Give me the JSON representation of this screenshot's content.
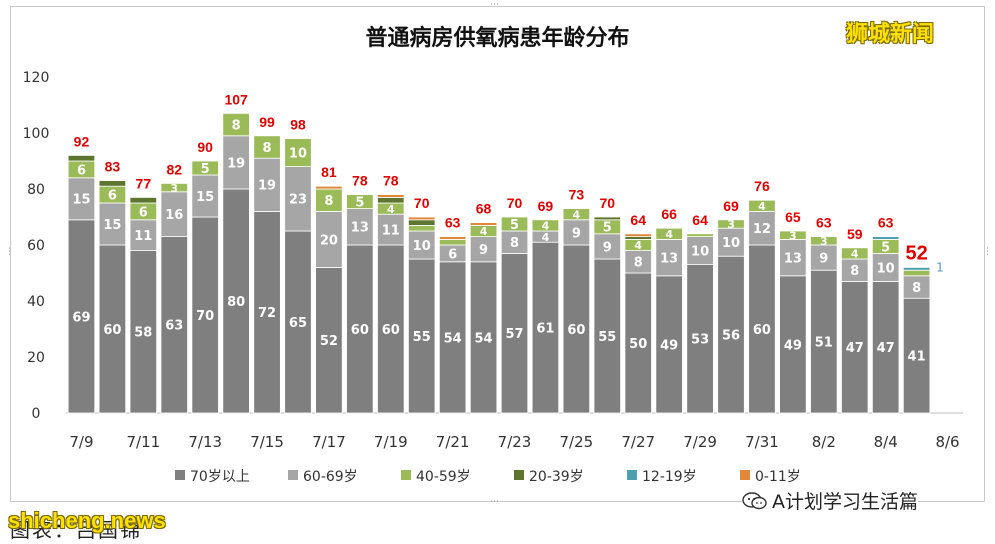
{
  "chart_data": {
    "type": "bar",
    "stacked": true,
    "title": "普通病房供氧病患年龄分布",
    "ylim": [
      0,
      120
    ],
    "yticks": [
      0,
      20,
      40,
      60,
      80,
      100,
      120
    ],
    "grid": false,
    "legend_placement": "bottom",
    "categories": [
      "7/9",
      "7/10",
      "7/11",
      "7/12",
      "7/13",
      "7/14",
      "7/15",
      "7/16",
      "7/17",
      "7/18",
      "7/19",
      "7/20",
      "7/21",
      "7/22",
      "7/23",
      "7/24",
      "7/25",
      "7/26",
      "7/27",
      "7/28",
      "7/29",
      "7/30",
      "7/31",
      "8/1",
      "8/2",
      "8/3",
      "8/4",
      "8/5",
      "8/6"
    ],
    "x_tick_labels": [
      "7/9",
      "7/11",
      "7/13",
      "7/15",
      "7/17",
      "7/19",
      "7/21",
      "7/23",
      "7/25",
      "7/27",
      "7/29",
      "7/31",
      "8/2",
      "8/4",
      "8/6"
    ],
    "totals": [
      92,
      83,
      77,
      82,
      90,
      107,
      99,
      98,
      81,
      78,
      78,
      70,
      63,
      68,
      70,
      69,
      73,
      70,
      64,
      66,
      64,
      69,
      76,
      65,
      63,
      59,
      63,
      52,
      null
    ],
    "series": [
      {
        "name": "70岁以上",
        "color": "#7f7f7f",
        "values": [
          69,
          60,
          58,
          63,
          70,
          80,
          72,
          65,
          52,
          60,
          60,
          55,
          54,
          54,
          57,
          61,
          60,
          55,
          50,
          49,
          53,
          56,
          60,
          49,
          51,
          47,
          47,
          41,
          0
        ]
      },
      {
        "name": "60-69岁",
        "color": "#a6a6a6",
        "values": [
          15,
          15,
          11,
          16,
          15,
          19,
          19,
          23,
          20,
          13,
          11,
          10,
          6,
          9,
          8,
          4,
          9,
          9,
          8,
          13,
          10,
          10,
          12,
          13,
          9,
          8,
          10,
          8,
          0
        ]
      },
      {
        "name": "40-59岁",
        "color": "#9bbb59",
        "values": [
          6,
          6,
          6,
          3,
          5,
          8,
          8,
          10,
          8,
          5,
          4,
          2,
          2,
          4,
          5,
          4,
          4,
          5,
          4,
          4,
          1,
          3,
          4,
          3,
          3,
          4,
          5,
          2,
          0
        ]
      },
      {
        "name": "20-39岁",
        "color": "#5e7530",
        "values": [
          2,
          2,
          2,
          0,
          0,
          0,
          0,
          0,
          0,
          0,
          2,
          2,
          0,
          0,
          0,
          0,
          0,
          1,
          1,
          0,
          0,
          0,
          0,
          0,
          0,
          0,
          0,
          0,
          0
        ]
      },
      {
        "name": "12-19岁",
        "color": "#4f9fb3",
        "values": [
          0,
          0,
          0,
          0,
          0,
          0,
          0,
          0,
          0,
          0,
          0,
          0,
          0,
          0,
          0,
          0,
          0,
          0,
          0,
          0,
          0,
          0,
          0,
          0,
          0,
          0,
          1,
          1,
          0
        ]
      },
      {
        "name": "0-11岁",
        "color": "#e1873a",
        "values": [
          0,
          0,
          0,
          0,
          0,
          0,
          0,
          0,
          1,
          0,
          1,
          1,
          1,
          1,
          0,
          0,
          0,
          0,
          1,
          0,
          0,
          0,
          0,
          0,
          0,
          0,
          0,
          0,
          0
        ]
      }
    ],
    "segment_labels_hidden": {
      "20-39岁": [],
      "12-19岁": [],
      "0-11岁": []
    }
  },
  "colors": {
    "total_label": "#e00000",
    "segment_label_dark": "#ffffff",
    "segment_label_light": "#333333"
  },
  "watermark_top": "狮城新闻",
  "watermark_bottom": "shicheng.news",
  "wechat_credit": "A计划学习生活篇",
  "caption": "图表：吕国锦"
}
